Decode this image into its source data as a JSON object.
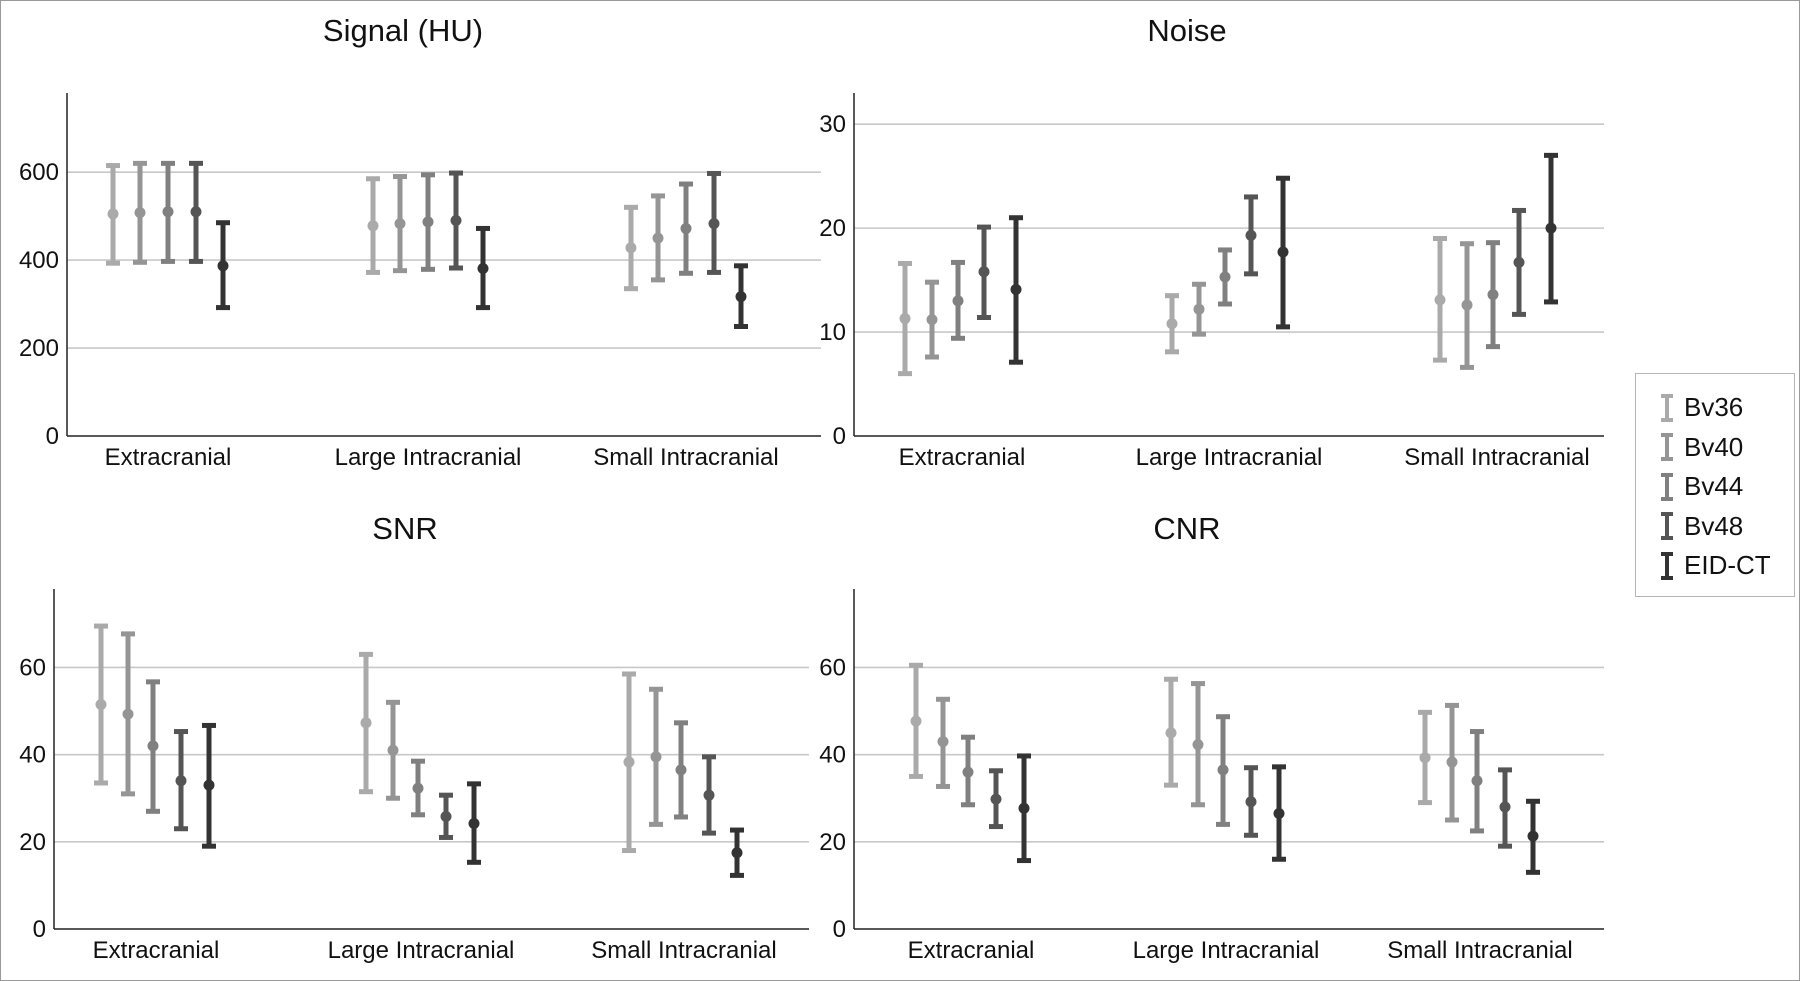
{
  "legend": [
    "Bv36",
    "Bv40",
    "Bv44",
    "Bv48",
    "EID-CT"
  ],
  "colors": [
    "#aaaaaa",
    "#959595",
    "#808080",
    "#555555",
    "#333333"
  ],
  "chart_data": [
    {
      "type": "errorbar",
      "title": "Signal (HU)",
      "categories": [
        "Extracranial",
        "Large Intracranial",
        "Small Intracranial"
      ],
      "ylim": [
        0,
        780
      ],
      "yticks": [
        0,
        200,
        400,
        600
      ],
      "grid": true,
      "series": [
        {
          "name": "Bv36",
          "mean": [
            505,
            478,
            428
          ],
          "low": [
            393,
            372,
            335
          ],
          "high": [
            615,
            585,
            520
          ]
        },
        {
          "name": "Bv40",
          "mean": [
            508,
            483,
            450
          ],
          "low": [
            395,
            376,
            355
          ],
          "high": [
            620,
            590,
            546
          ]
        },
        {
          "name": "Bv44",
          "mean": [
            510,
            487,
            472
          ],
          "low": [
            397,
            379,
            370
          ],
          "high": [
            620,
            594,
            573
          ]
        },
        {
          "name": "Bv48",
          "mean": [
            510,
            490,
            483
          ],
          "low": [
            397,
            382,
            372
          ],
          "high": [
            620,
            598,
            597
          ]
        },
        {
          "name": "EID-CT",
          "mean": [
            387,
            381,
            317
          ],
          "low": [
            292,
            292,
            249
          ],
          "high": [
            485,
            472,
            387
          ]
        }
      ]
    },
    {
      "type": "errorbar",
      "title": "Noise",
      "categories": [
        "Extracranial",
        "Large Intracranial",
        "Small Intracranial"
      ],
      "ylim": [
        0,
        33
      ],
      "yticks": [
        0,
        10,
        20,
        30
      ],
      "grid": true,
      "series": [
        {
          "name": "Bv36",
          "mean": [
            11.3,
            10.8,
            13.1
          ],
          "low": [
            6.0,
            8.1,
            7.3
          ],
          "high": [
            16.6,
            13.5,
            19.0
          ]
        },
        {
          "name": "Bv40",
          "mean": [
            11.2,
            12.2,
            12.6
          ],
          "low": [
            7.6,
            9.8,
            6.6
          ],
          "high": [
            14.8,
            14.6,
            18.5
          ]
        },
        {
          "name": "Bv44",
          "mean": [
            13.0,
            15.3,
            13.6
          ],
          "low": [
            9.4,
            12.7,
            8.6
          ],
          "high": [
            16.7,
            17.9,
            18.6
          ]
        },
        {
          "name": "Bv48",
          "mean": [
            15.8,
            19.3,
            16.7
          ],
          "low": [
            11.4,
            15.6,
            11.7
          ],
          "high": [
            20.1,
            23.0,
            21.7
          ]
        },
        {
          "name": "EID-CT",
          "mean": [
            14.1,
            17.7,
            20.0
          ],
          "low": [
            7.1,
            10.5,
            12.9
          ],
          "high": [
            21.0,
            24.8,
            27.0
          ]
        }
      ]
    },
    {
      "type": "errorbar",
      "title": "SNR",
      "categories": [
        "Extracranial",
        "Large Intracranial",
        "Small Intracranial"
      ],
      "ylim": [
        0,
        78
      ],
      "yticks": [
        0,
        20,
        40,
        60
      ],
      "grid": true,
      "series": [
        {
          "name": "Bv36",
          "mean": [
            51.5,
            47.3,
            38.3
          ],
          "low": [
            33.5,
            31.5,
            18.0
          ],
          "high": [
            69.5,
            63.0,
            58.5
          ]
        },
        {
          "name": "Bv40",
          "mean": [
            49.3,
            41.0,
            39.5
          ],
          "low": [
            31.0,
            30.0,
            24.0
          ],
          "high": [
            67.7,
            52.0,
            55.0
          ]
        },
        {
          "name": "Bv44",
          "mean": [
            42.0,
            32.3,
            36.5
          ],
          "low": [
            27.0,
            26.2,
            25.7
          ],
          "high": [
            56.7,
            38.5,
            47.3
          ]
        },
        {
          "name": "Bv48",
          "mean": [
            34.0,
            25.8,
            30.7
          ],
          "low": [
            23.0,
            21.0,
            22.0
          ],
          "high": [
            45.3,
            30.7,
            39.5
          ]
        },
        {
          "name": "EID-CT",
          "mean": [
            33.0,
            24.2,
            17.5
          ],
          "low": [
            19.0,
            15.3,
            12.3
          ],
          "high": [
            46.7,
            33.3,
            22.7
          ]
        }
      ]
    },
    {
      "type": "errorbar",
      "title": "CNR",
      "categories": [
        "Extracranial",
        "Large Intracranial",
        "Small Intracranial"
      ],
      "ylim": [
        0,
        78
      ],
      "yticks": [
        0,
        20,
        40,
        60
      ],
      "grid": true,
      "series": [
        {
          "name": "Bv36",
          "mean": [
            47.7,
            45.0,
            39.3
          ],
          "low": [
            35.0,
            33.0,
            29.0
          ],
          "high": [
            60.5,
            57.3,
            49.7
          ]
        },
        {
          "name": "Bv40",
          "mean": [
            43.0,
            42.3,
            38.3
          ],
          "low": [
            32.7,
            28.5,
            25.0
          ],
          "high": [
            52.7,
            56.3,
            51.3
          ]
        },
        {
          "name": "Bv44",
          "mean": [
            36.0,
            36.5,
            34.0
          ],
          "low": [
            28.5,
            24.0,
            22.5
          ],
          "high": [
            44.0,
            48.7,
            45.3
          ]
        },
        {
          "name": "Bv48",
          "mean": [
            29.8,
            29.2,
            28.0
          ],
          "low": [
            23.5,
            21.5,
            19.0
          ],
          "high": [
            36.3,
            37.0,
            36.5
          ]
        },
        {
          "name": "EID-CT",
          "mean": [
            27.7,
            26.5,
            21.3
          ],
          "low": [
            15.7,
            16.0,
            13.0
          ],
          "high": [
            39.7,
            37.2,
            29.3
          ]
        }
      ]
    }
  ]
}
